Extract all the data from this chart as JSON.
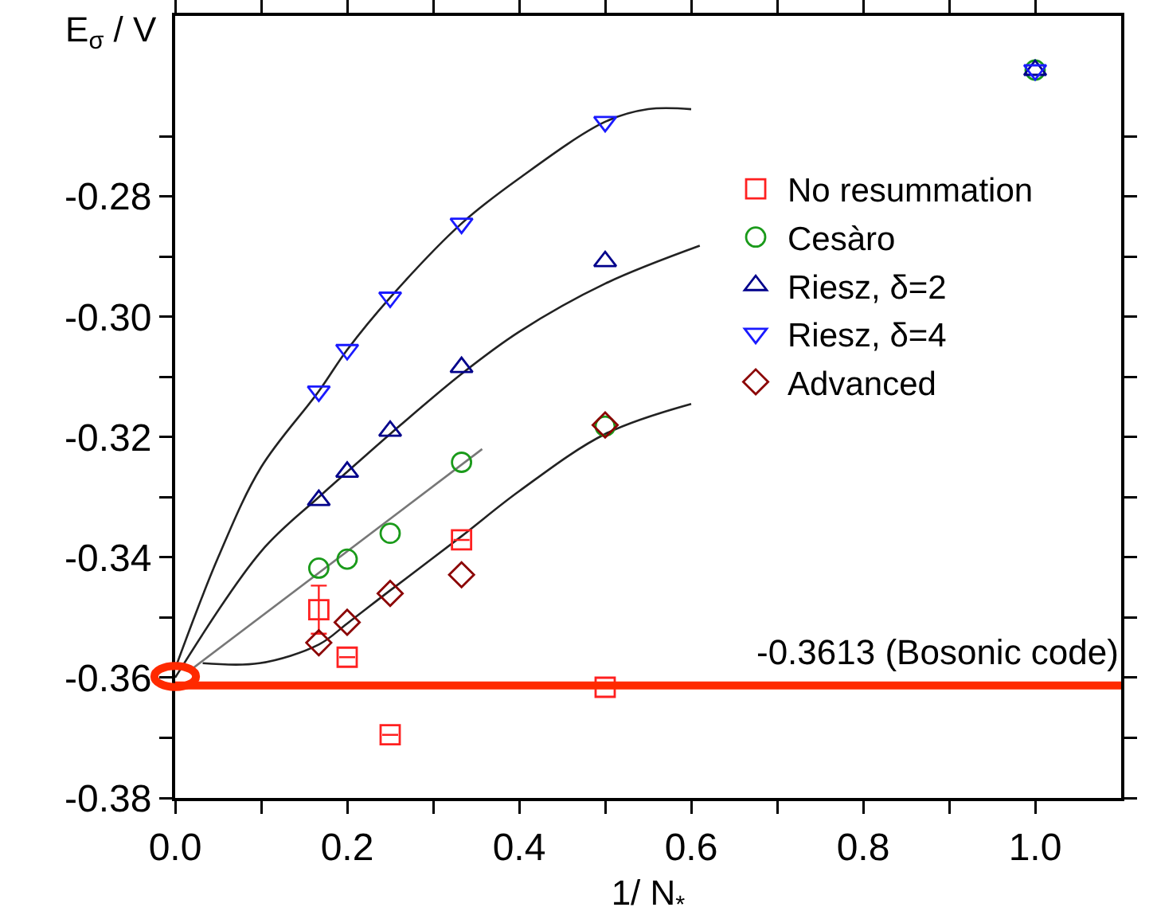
{
  "chart_data": {
    "type": "scatter",
    "xlabel": "1/ N$_{*}$",
    "ylabel": "E$_{σ}$ / V",
    "xlim": [
      0,
      1.1
    ],
    "ylim": [
      -0.38,
      -0.25
    ],
    "xticks": [
      {
        "value": 0,
        "label": "0.0"
      },
      {
        "value": 0.1,
        "label": null
      },
      {
        "value": 0.2,
        "label": "0.2"
      },
      {
        "value": 0.3,
        "label": null
      },
      {
        "value": 0.4,
        "label": "0.4"
      },
      {
        "value": 0.5,
        "label": null
      },
      {
        "value": 0.6,
        "label": "0.6"
      },
      {
        "value": 0.7,
        "label": null
      },
      {
        "value": 0.8,
        "label": "0.8"
      },
      {
        "value": 0.9,
        "label": null
      },
      {
        "value": 1.0,
        "label": "1.0"
      }
    ],
    "yticks": [
      {
        "value": -0.38,
        "label": "-0.38"
      },
      {
        "value": -0.37,
        "label": null
      },
      {
        "value": -0.36,
        "label": "-0.36"
      },
      {
        "value": -0.35,
        "label": null
      },
      {
        "value": -0.34,
        "label": "-0.34"
      },
      {
        "value": -0.33,
        "label": null
      },
      {
        "value": -0.32,
        "label": "-0.32"
      },
      {
        "value": -0.31,
        "label": null
      },
      {
        "value": -0.3,
        "label": "-0.30"
      },
      {
        "value": -0.29,
        "label": null
      },
      {
        "value": -0.28,
        "label": "-0.28"
      },
      {
        "value": -0.27,
        "label": null
      }
    ],
    "grid": false,
    "legend": "right",
    "series": [
      {
        "type": "line",
        "marker": "none",
        "color": "#222222",
        "x": [
          0,
          0.05,
          0.1,
          0.167,
          0.2,
          0.25,
          0.333,
          0.4,
          0.5,
          0.55,
          0.6
        ],
        "values": [
          -0.3585,
          -0.34,
          -0.325,
          -0.3124,
          -0.3055,
          -0.2968,
          -0.2845,
          -0.277,
          -0.2676,
          -0.2655,
          -0.2655
        ]
      },
      {
        "type": "line",
        "marker": "none",
        "color": "#222222",
        "x": [
          0,
          0.1,
          0.167,
          0.2,
          0.25,
          0.333,
          0.4,
          0.5,
          0.61
        ],
        "values": [
          -0.36,
          -0.339,
          -0.33,
          -0.3258,
          -0.3195,
          -0.3095,
          -0.3025,
          -0.2945,
          -0.2882
        ]
      },
      {
        "type": "line",
        "marker": "none",
        "color": "#777777",
        "x": [
          0.02,
          0.357
        ],
        "values": [
          -0.3585,
          -0.322
        ]
      },
      {
        "type": "line",
        "marker": "none",
        "color": "#222222",
        "x": [
          0.032,
          0.098,
          0.167,
          0.2,
          0.25,
          0.333,
          0.4,
          0.5,
          0.6
        ],
        "values": [
          -0.3576,
          -0.3576,
          -0.3545,
          -0.351,
          -0.3455,
          -0.3365,
          -0.329,
          -0.3195,
          -0.3145
        ]
      },
      {
        "name": "No resummation",
        "marker": "square",
        "color": "#ff2020",
        "x": [
          0.167,
          0.2,
          0.25,
          0.333,
          0.5
        ],
        "values": [
          -0.3487,
          -0.3566,
          -0.3695,
          -0.3371,
          -0.3616
        ],
        "errors": [
          0.004,
          null,
          null,
          null,
          null
        ]
      },
      {
        "name": "Cesàro",
        "marker": "circle",
        "color": "#1a9a1a",
        "x": [
          0.167,
          0.2,
          0.25,
          0.333,
          0.5,
          1.0
        ],
        "values": [
          -0.3418,
          -0.3403,
          -0.336,
          -0.3242,
          -0.3182,
          -0.259
        ]
      },
      {
        "name": "Riesz, δ=2",
        "marker": "triangle",
        "color": "#00008b",
        "x": [
          0.167,
          0.2,
          0.25,
          0.333,
          0.5,
          1.0
        ],
        "values": [
          -0.3305,
          -0.3258,
          -0.319,
          -0.3084,
          -0.2908,
          -0.259
        ]
      },
      {
        "name": "Riesz, δ=4",
        "marker": "triangle-down",
        "color": "#1a1aff",
        "x": [
          0.167,
          0.2,
          0.25,
          0.333,
          0.5,
          1.0
        ],
        "values": [
          -0.3124,
          -0.3055,
          -0.2968,
          -0.2845,
          -0.2676,
          -0.259
        ]
      },
      {
        "name": "Advanced",
        "marker": "diamond",
        "color": "#8b0000",
        "x": [
          0.167,
          0.2,
          0.25,
          0.333,
          0.5
        ],
        "values": [
          -0.3542,
          -0.3508,
          -0.346,
          -0.3429,
          -0.318
        ]
      }
    ],
    "ref_lines": [
      {
        "axis": "y",
        "value": -0.3613,
        "label": "-0.3613 (Bosonic code)",
        "color": "#ff2a00"
      }
    ]
  }
}
